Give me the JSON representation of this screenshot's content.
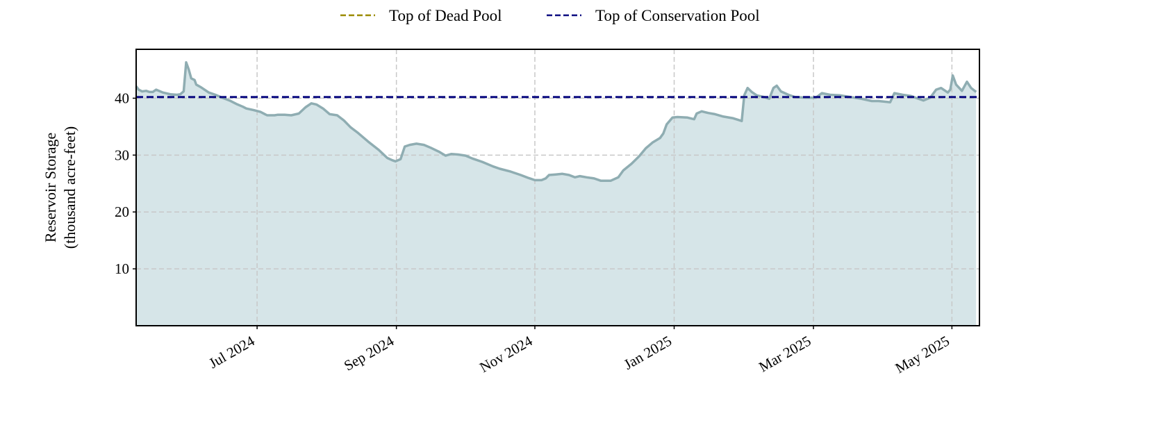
{
  "chart_data": {
    "type": "area",
    "ylabel": [
      "Reservoir Storage",
      "(thousand acre-feet)"
    ],
    "xlim": [
      2024.355,
      2025.366
    ],
    "xticks": [
      {
        "value": 2024.5,
        "label": "Jul 2024"
      },
      {
        "value": 2024.667,
        "label": "Sep 2024"
      },
      {
        "value": 2024.833,
        "label": "Nov 2024"
      },
      {
        "value": 2025.0,
        "label": "Jan 2025"
      },
      {
        "value": 2025.167,
        "label": "Mar 2025"
      },
      {
        "value": 2025.333,
        "label": "May 2025"
      }
    ],
    "ylim": [
      0,
      48.6
    ],
    "yticks": [
      10,
      20,
      30,
      40
    ],
    "grid": true,
    "legend": "top",
    "x": [
      2024.355,
      2024.358,
      2024.362,
      2024.367,
      2024.371,
      2024.375,
      2024.379,
      2024.387,
      2024.396,
      2024.404,
      2024.408,
      2024.412,
      2024.415,
      2024.418,
      2024.421,
      2024.425,
      2024.427,
      2024.433,
      2024.442,
      2024.45,
      2024.458,
      2024.467,
      2024.475,
      2024.483,
      2024.487,
      2024.496,
      2024.504,
      2024.512,
      2024.521,
      2024.525,
      2024.533,
      2024.541,
      2024.55,
      2024.558,
      2024.565,
      2024.571,
      2024.579,
      2024.587,
      2024.596,
      2024.604,
      2024.612,
      2024.621,
      2024.633,
      2024.646,
      2024.656,
      2024.662,
      2024.666,
      2024.672,
      2024.677,
      2024.683,
      2024.691,
      2024.7,
      2024.708,
      2024.718,
      2024.726,
      2024.733,
      2024.741,
      2024.75,
      2024.758,
      2024.77,
      2024.783,
      2024.791,
      2024.804,
      2024.816,
      2024.825,
      2024.833,
      2024.841,
      2024.846,
      2024.85,
      2024.858,
      2024.866,
      2024.874,
      2024.881,
      2024.887,
      2024.895,
      2024.904,
      2024.912,
      2024.924,
      2024.933,
      2024.939,
      2024.949,
      2024.958,
      2024.966,
      2024.974,
      2024.983,
      2024.987,
      2024.991,
      2024.998,
      2025.004,
      2025.016,
      2025.024,
      2025.027,
      2025.033,
      2025.041,
      2025.049,
      2025.058,
      2025.07,
      2025.081,
      2025.084,
      2025.088,
      2025.093,
      2025.099,
      2025.108,
      2025.114,
      2025.119,
      2025.123,
      2025.128,
      2025.137,
      2025.145,
      2025.158,
      2025.17,
      2025.177,
      2025.187,
      2025.199,
      2025.212,
      2025.224,
      2025.237,
      2025.245,
      2025.259,
      2025.264,
      2025.274,
      2025.284,
      2025.291,
      2025.299,
      2025.307,
      2025.314,
      2025.32,
      2025.328,
      2025.331,
      2025.334,
      2025.338,
      2025.345,
      2025.351,
      2025.356,
      2025.362
    ],
    "series": [
      {
        "color": "#8fadb2",
        "fill": "#d6e5e8",
        "values": [
          42.1,
          41.5,
          41.2,
          41.3,
          41.1,
          41.1,
          41.5,
          41.0,
          40.7,
          40.6,
          40.7,
          41.2,
          46.3,
          45.1,
          43.5,
          43.2,
          42.4,
          41.9,
          41.0,
          40.6,
          40.1,
          39.6,
          39.0,
          38.5,
          38.2,
          37.9,
          37.6,
          37.0,
          37.0,
          37.1,
          37.1,
          37.0,
          37.3,
          38.4,
          39.1,
          38.9,
          38.2,
          37.2,
          37.0,
          36.1,
          34.9,
          33.9,
          32.4,
          30.9,
          29.5,
          29.1,
          28.9,
          29.3,
          31.5,
          31.8,
          32.0,
          31.8,
          31.3,
          30.6,
          29.9,
          30.2,
          30.1,
          29.9,
          29.4,
          28.8,
          28.0,
          27.6,
          27.1,
          26.5,
          26.0,
          25.6,
          25.6,
          25.9,
          26.5,
          26.6,
          26.7,
          26.5,
          26.1,
          26.3,
          26.1,
          25.9,
          25.5,
          25.5,
          26.1,
          27.3,
          28.5,
          29.8,
          31.2,
          32.2,
          33.0,
          33.8,
          35.4,
          36.6,
          36.7,
          36.6,
          36.3,
          37.3,
          37.7,
          37.4,
          37.2,
          36.8,
          36.5,
          36.0,
          40.5,
          41.8,
          41.1,
          40.5,
          40.2,
          39.9,
          41.8,
          42.2,
          41.2,
          40.6,
          40.2,
          40.1,
          40.1,
          40.9,
          40.6,
          40.5,
          40.2,
          39.9,
          39.5,
          39.5,
          39.3,
          40.9,
          40.6,
          40.4,
          40.0,
          39.6,
          40.1,
          41.5,
          41.8,
          41.0,
          41.5,
          44.0,
          42.4,
          41.3,
          42.9,
          41.8,
          41.1
        ]
      }
    ],
    "reference_lines": [
      {
        "name": "Top of Dead Pool",
        "color": "#9a8a00"
      },
      {
        "name": "Top of Conservation Pool",
        "color": "#0a0a80",
        "value": 40.2
      }
    ]
  }
}
